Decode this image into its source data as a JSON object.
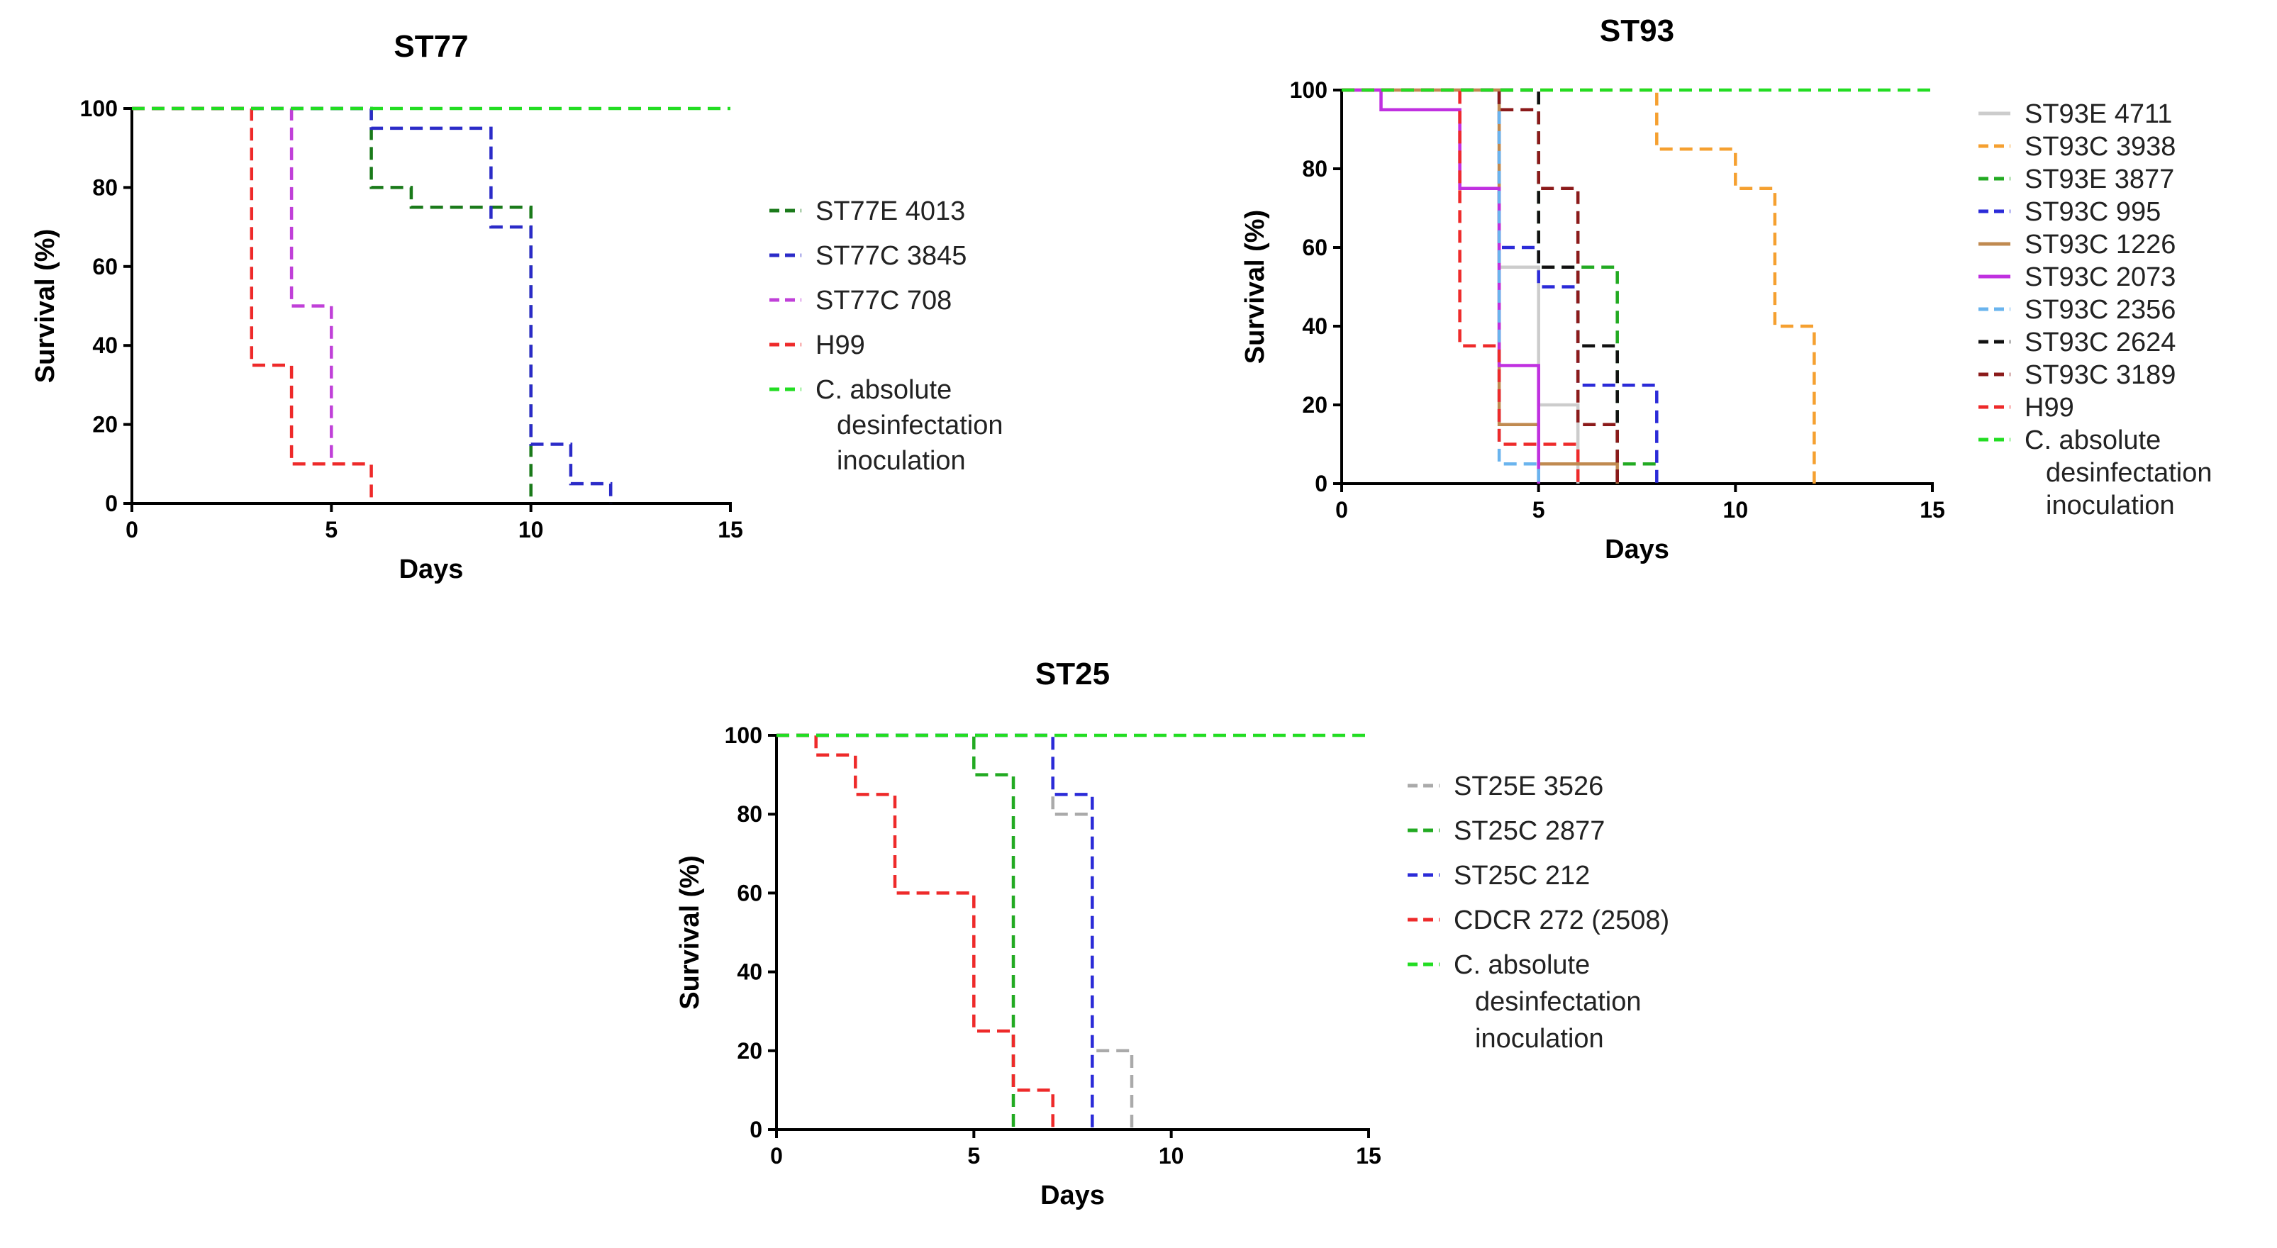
{
  "chart_data": [
    {
      "id": "st77",
      "type": "line",
      "step": true,
      "title": "ST77",
      "xlabel": "Days",
      "ylabel": "Survival (%)",
      "xlim": [
        0,
        15
      ],
      "ylim": [
        0,
        100
      ],
      "xticks": [
        0,
        5,
        10,
        15
      ],
      "yticks": [
        0,
        20,
        40,
        60,
        80,
        100
      ],
      "series": [
        {
          "name": "ST77E 4013",
          "color": "#1a7a1a",
          "dash": true,
          "points": [
            [
              0,
              100
            ],
            [
              6,
              100
            ],
            [
              6,
              80
            ],
            [
              7,
              80
            ],
            [
              7,
              75
            ],
            [
              10,
              75
            ],
            [
              10,
              0
            ]
          ]
        },
        {
          "name": "ST77C 3845",
          "color": "#2b2bc8",
          "dash": true,
          "points": [
            [
              0,
              100
            ],
            [
              6,
              100
            ],
            [
              6,
              95
            ],
            [
              9,
              95
            ],
            [
              9,
              70
            ],
            [
              10,
              70
            ],
            [
              10,
              15
            ],
            [
              11,
              15
            ],
            [
              11,
              5
            ],
            [
              12,
              5
            ],
            [
              12,
              0
            ]
          ]
        },
        {
          "name": "ST77C 708",
          "color": "#c040d8",
          "dash": true,
          "points": [
            [
              0,
              100
            ],
            [
              4,
              100
            ],
            [
              4,
              50
            ],
            [
              5,
              50
            ],
            [
              5,
              10
            ]
          ]
        },
        {
          "name": "H99",
          "color": "#ee2a2a",
          "dash": true,
          "points": [
            [
              0,
              100
            ],
            [
              3,
              100
            ],
            [
              3,
              35
            ],
            [
              4,
              35
            ],
            [
              4,
              10
            ],
            [
              6,
              10
            ],
            [
              6,
              0
            ]
          ]
        },
        {
          "name": "C. absolute desinfectation inoculation",
          "legend_lines": [
            "C. absolute",
            "desinfectation",
            "inoculation"
          ],
          "color": "#22dd22",
          "dash": true,
          "points": [
            [
              0,
              100
            ],
            [
              15,
              100
            ]
          ]
        }
      ]
    },
    {
      "id": "st93",
      "type": "line",
      "step": true,
      "title": "ST93",
      "xlabel": "Days",
      "ylabel": "Survival (%)",
      "xlim": [
        0,
        15
      ],
      "ylim": [
        0,
        100
      ],
      "xticks": [
        0,
        5,
        10,
        15
      ],
      "yticks": [
        0,
        20,
        40,
        60,
        80,
        100
      ],
      "series": [
        {
          "name": "ST93E 4711",
          "color": "#cccccc",
          "dash": false,
          "points": [
            [
              0,
              100
            ],
            [
              4,
              100
            ],
            [
              4,
              55
            ],
            [
              5,
              55
            ],
            [
              5,
              20
            ],
            [
              6,
              20
            ],
            [
              6,
              0
            ]
          ]
        },
        {
          "name": "ST93C 3938",
          "color": "#f5a030",
          "dash": true,
          "points": [
            [
              0,
              100
            ],
            [
              8,
              100
            ],
            [
              8,
              85
            ],
            [
              10,
              85
            ],
            [
              10,
              75
            ],
            [
              11,
              75
            ],
            [
              11,
              40
            ],
            [
              12,
              40
            ],
            [
              12,
              0
            ]
          ]
        },
        {
          "name": "ST93E 3877",
          "color": "#22aa22",
          "dash": true,
          "points": [
            [
              0,
              100
            ],
            [
              5,
              100
            ],
            [
              5,
              55
            ],
            [
              7,
              55
            ],
            [
              7,
              5
            ],
            [
              8,
              5
            ]
          ]
        },
        {
          "name": "ST93C 995",
          "color": "#2b2bd8",
          "dash": true,
          "points": [
            [
              0,
              100
            ],
            [
              4,
              100
            ],
            [
              4,
              60
            ],
            [
              5,
              60
            ],
            [
              5,
              50
            ],
            [
              6,
              50
            ],
            [
              6,
              25
            ],
            [
              8,
              25
            ],
            [
              8,
              0
            ]
          ]
        },
        {
          "name": "ST93C 1226",
          "color": "#c08a50",
          "dash": false,
          "points": [
            [
              0,
              100
            ],
            [
              4,
              100
            ],
            [
              4,
              15
            ],
            [
              5,
              15
            ],
            [
              5,
              5
            ],
            [
              7,
              5
            ],
            [
              7,
              0
            ]
          ]
        },
        {
          "name": "ST93C 2073",
          "color": "#c030e0",
          "dash": false,
          "points": [
            [
              0,
              100
            ],
            [
              1,
              100
            ],
            [
              1,
              95
            ],
            [
              3,
              95
            ],
            [
              3,
              75
            ],
            [
              4,
              75
            ],
            [
              4,
              30
            ],
            [
              5,
              30
            ],
            [
              5,
              0
            ]
          ]
        },
        {
          "name": "ST93C 2356",
          "color": "#6ab4ee",
          "dash": true,
          "points": [
            [
              0,
              100
            ],
            [
              4,
              100
            ],
            [
              4,
              5
            ],
            [
              5,
              5
            ],
            [
              5,
              0
            ]
          ]
        },
        {
          "name": "ST93C 2624",
          "color": "#111111",
          "dash": true,
          "points": [
            [
              0,
              100
            ],
            [
              5,
              100
            ],
            [
              5,
              55
            ],
            [
              6,
              55
            ],
            [
              6,
              35
            ],
            [
              7,
              35
            ],
            [
              7,
              0
            ]
          ]
        },
        {
          "name": "ST93C 3189",
          "color": "#8b1a1a",
          "dash": true,
          "points": [
            [
              0,
              100
            ],
            [
              4,
              100
            ],
            [
              4,
              95
            ],
            [
              5,
              95
            ],
            [
              5,
              75
            ],
            [
              6,
              75
            ],
            [
              6,
              15
            ],
            [
              7,
              15
            ],
            [
              7,
              0
            ]
          ]
        },
        {
          "name": "H99",
          "color": "#ee2a2a",
          "dash": true,
          "points": [
            [
              0,
              100
            ],
            [
              3,
              100
            ],
            [
              3,
              35
            ],
            [
              4,
              35
            ],
            [
              4,
              10
            ],
            [
              6,
              10
            ],
            [
              6,
              0
            ]
          ]
        },
        {
          "name": "C. absolute desinfectation inoculation",
          "legend_lines": [
            "C. absolute",
            "desinfectation",
            "inoculation"
          ],
          "color": "#22dd22",
          "dash": true,
          "points": [
            [
              0,
              100
            ],
            [
              15,
              100
            ]
          ]
        }
      ]
    },
    {
      "id": "st25",
      "type": "line",
      "step": true,
      "title": "ST25",
      "xlabel": "Days",
      "ylabel": "Survival (%)",
      "xlim": [
        0,
        15
      ],
      "ylim": [
        0,
        100
      ],
      "xticks": [
        0,
        5,
        10,
        15
      ],
      "yticks": [
        0,
        20,
        40,
        60,
        80,
        100
      ],
      "series": [
        {
          "name": "ST25E 3526",
          "color": "#aaaaaa",
          "dash": true,
          "points": [
            [
              0,
              100
            ],
            [
              7,
              100
            ],
            [
              7,
              80
            ],
            [
              8,
              80
            ],
            [
              8,
              20
            ],
            [
              9,
              20
            ],
            [
              9,
              0
            ]
          ]
        },
        {
          "name": "ST25C 2877",
          "color": "#22aa22",
          "dash": true,
          "points": [
            [
              0,
              100
            ],
            [
              5,
              100
            ],
            [
              5,
              90
            ],
            [
              6,
              90
            ],
            [
              6,
              0
            ]
          ]
        },
        {
          "name": "ST25C 212",
          "color": "#2b2bd8",
          "dash": true,
          "points": [
            [
              0,
              100
            ],
            [
              7,
              100
            ],
            [
              7,
              85
            ],
            [
              8,
              85
            ],
            [
              8,
              0
            ]
          ]
        },
        {
          "name": "CDCR 272 (2508)",
          "color": "#ee2a2a",
          "dash": true,
          "points": [
            [
              0,
              100
            ],
            [
              1,
              100
            ],
            [
              1,
              95
            ],
            [
              2,
              95
            ],
            [
              2,
              85
            ],
            [
              3,
              85
            ],
            [
              3,
              60
            ],
            [
              5,
              60
            ],
            [
              5,
              25
            ],
            [
              6,
              25
            ],
            [
              6,
              10
            ],
            [
              7,
              10
            ],
            [
              7,
              0
            ]
          ]
        },
        {
          "name": "C. absolute desinfectation inoculation",
          "legend_lines": [
            "C. absolute",
            "desinfectation",
            "inoculation"
          ],
          "color": "#22dd22",
          "dash": true,
          "points": [
            [
              0,
              100
            ],
            [
              15,
              100
            ]
          ]
        }
      ]
    }
  ]
}
